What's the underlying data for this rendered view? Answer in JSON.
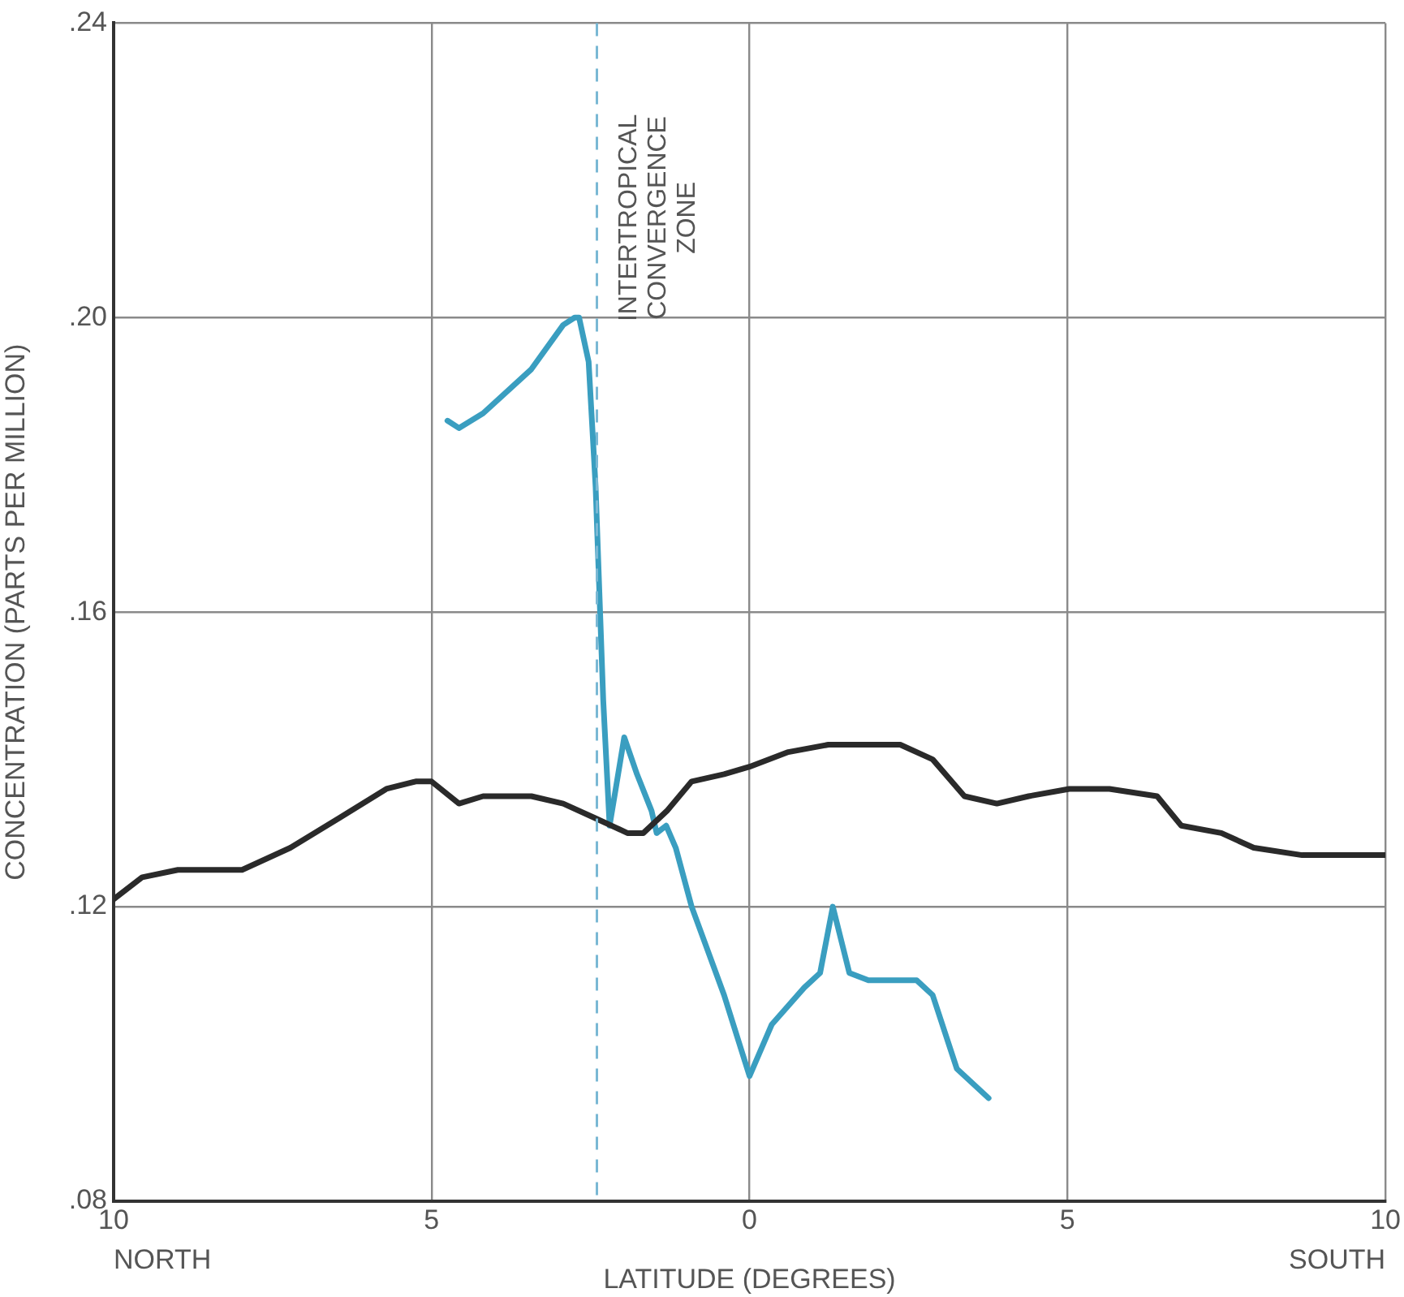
{
  "chart_data": {
    "type": "line",
    "xlabel": "LATITUDE (DEGREES)",
    "ylabel": "CONCENTRATION (PARTS PER MILLION)",
    "xlim": [
      -10,
      10
    ],
    "xticks": [
      {
        "value": -10,
        "label": "10"
      },
      {
        "value": -5,
        "label": "5"
      },
      0,
      5,
      10
    ],
    "ylim": [
      0.08,
      0.24
    ],
    "yticks": [
      {
        "value": 0.08,
        "label": ".08"
      },
      {
        "value": 0.12,
        "label": ".12"
      },
      {
        "value": 0.16,
        "label": ".16"
      },
      {
        "value": 0.2,
        "label": ".20"
      },
      {
        "value": 0.24,
        "label": ".24"
      }
    ],
    "grid": true,
    "legend": false,
    "marker": "none",
    "line_style": "solid",
    "series": [
      {
        "color": "#2a2a2a",
        "x": [
          -10,
          -9.55,
          -8.99,
          -8.48,
          -7.98,
          -7.22,
          -6.46,
          -5.71,
          -5.25,
          -5.0,
          -4.57,
          -4.19,
          -3.43,
          -2.93,
          -2.42,
          -1.92,
          -1.67,
          -1.3,
          -0.91,
          -0.4,
          0,
          0.61,
          1.24,
          2.37,
          2.88,
          3.38,
          3.89,
          4.39,
          5.03,
          5.66,
          6.41,
          6.79,
          7.42,
          7.93,
          8.69,
          10
        ],
        "values": [
          0.121,
          0.124,
          0.125,
          0.125,
          0.125,
          0.128,
          0.132,
          0.136,
          0.137,
          0.137,
          0.134,
          0.135,
          0.135,
          0.134,
          0.132,
          0.13,
          0.13,
          0.133,
          0.137,
          0.138,
          0.139,
          0.141,
          0.142,
          0.142,
          0.14,
          0.135,
          0.134,
          0.135,
          0.136,
          0.136,
          0.135,
          0.131,
          0.13,
          0.128,
          0.127,
          0.127
        ]
      },
      {
        "color": "#3a9ec0",
        "x": [
          -4.75,
          -4.57,
          -4.19,
          -3.43,
          -2.93,
          -2.75,
          -2.68,
          -2.53,
          -2.42,
          -2.3,
          -2.2,
          -1.97,
          -1.77,
          -1.54,
          -1.46,
          -1.31,
          -1.16,
          -0.91,
          -0.4,
          0,
          0.35,
          0.86,
          1.11,
          1.31,
          1.57,
          1.87,
          2.63,
          2.88,
          3.26,
          3.76
        ],
        "values": [
          0.186,
          0.185,
          0.187,
          0.193,
          0.199,
          0.2,
          0.2,
          0.194,
          0.177,
          0.148,
          0.131,
          0.143,
          0.138,
          0.133,
          0.13,
          0.131,
          0.128,
          0.12,
          0.108,
          0.097,
          0.104,
          0.109,
          0.111,
          0.12,
          0.111,
          0.11,
          0.11,
          0.108,
          0.098,
          0.094
        ]
      }
    ],
    "ref_lines": [
      {
        "axis": "x",
        "value": -2.4,
        "label": "INTERTROPICAL CONVERGENCE ZONE",
        "color": "#7ab8d4",
        "line_style": "dashed"
      }
    ],
    "annotations": [
      "NORTH",
      "SOUTH"
    ]
  }
}
